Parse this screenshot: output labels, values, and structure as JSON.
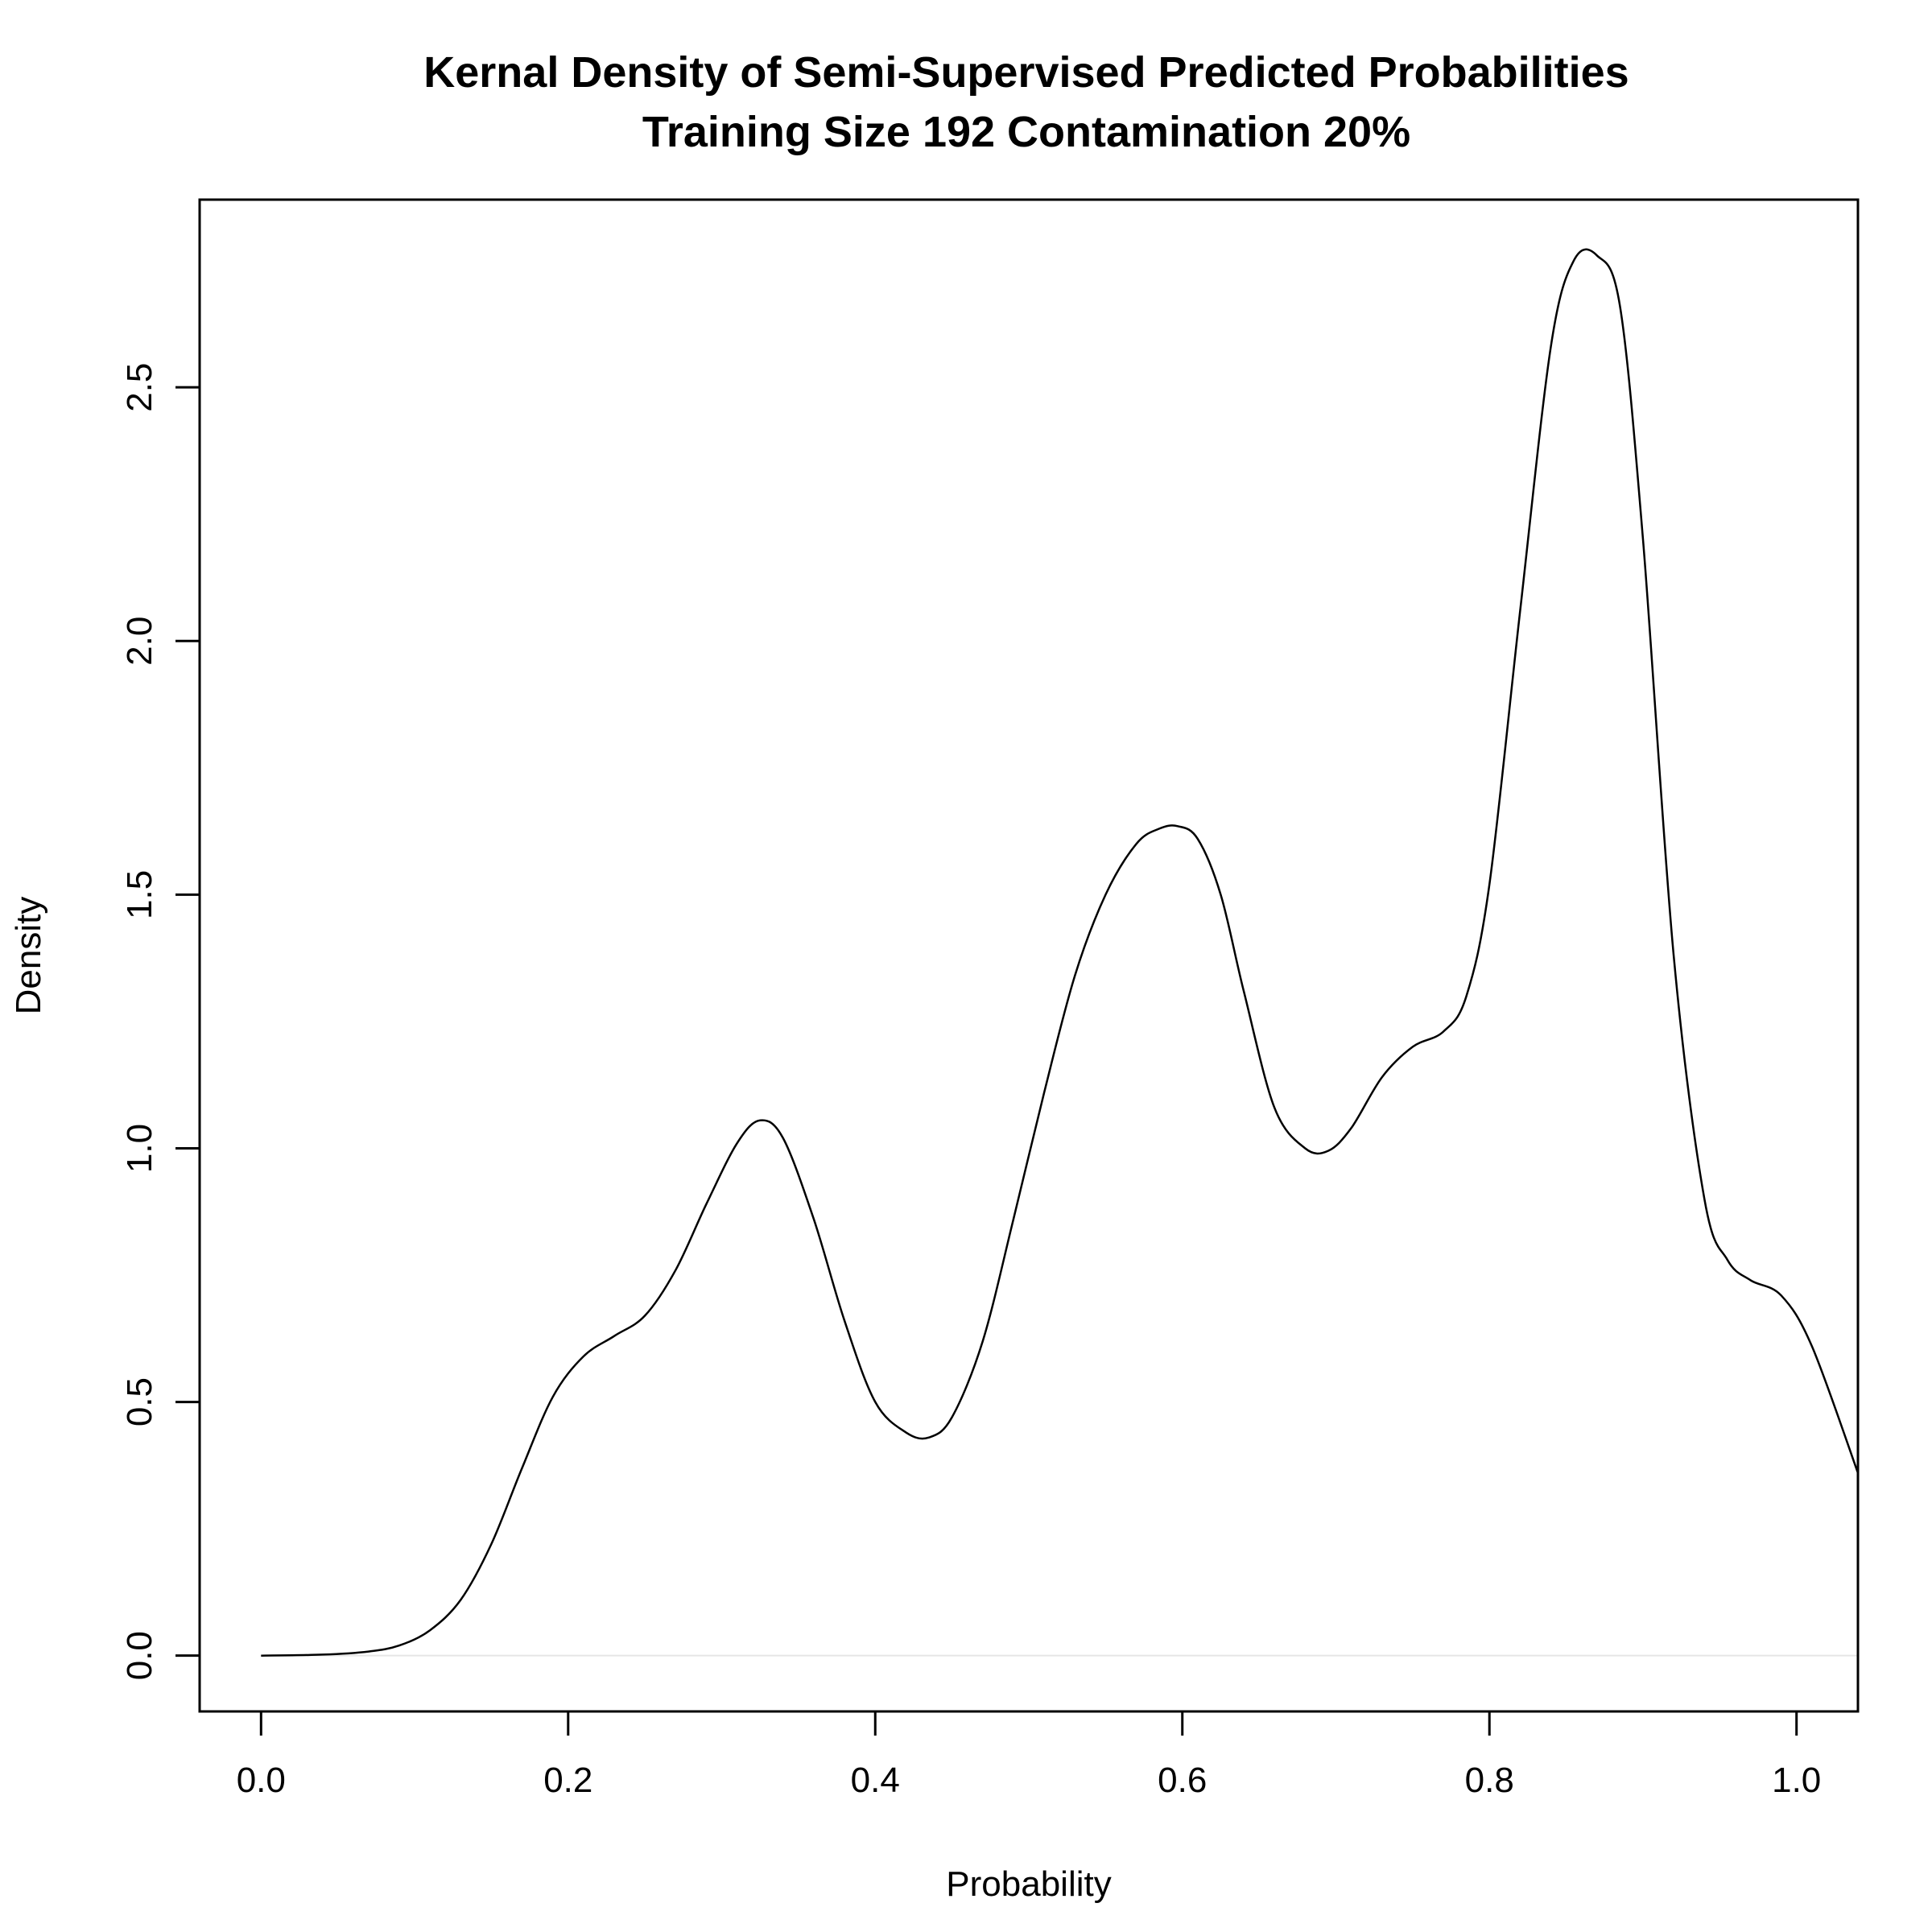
{
  "chart_data": {
    "type": "line",
    "title": "Kernal Density of Semi-Supervised Predicted Probabilities",
    "subtitle": "Training Size 192 Contamination 20%",
    "xlabel": "Probability",
    "ylabel": "Density",
    "xlim": [
      -0.04,
      1.04
    ],
    "ylim": [
      -0.11,
      2.87
    ],
    "x_ticks": [
      0.0,
      0.2,
      0.4,
      0.6,
      0.8,
      1.0
    ],
    "x_tick_labels": [
      "0.0",
      "0.2",
      "0.4",
      "0.6",
      "0.8",
      "1.0"
    ],
    "y_ticks": [
      0.0,
      0.5,
      1.0,
      1.5,
      2.0,
      2.5
    ],
    "y_tick_labels": [
      "0.0",
      "0.5",
      "1.0",
      "1.5",
      "2.0",
      "2.5"
    ],
    "grid": false,
    "zero_line": true,
    "colors": {
      "line": "#000000",
      "zero_line": "#e6e6e6"
    },
    "series": [
      {
        "x": [
          0.0,
          0.04,
          0.07,
          0.09,
          0.11,
          0.13,
          0.15,
          0.17,
          0.19,
          0.21,
          0.23,
          0.25,
          0.27,
          0.29,
          0.31,
          0.325,
          0.34,
          0.36,
          0.38,
          0.4,
          0.42,
          0.435,
          0.45,
          0.47,
          0.49,
          0.51,
          0.53,
          0.55,
          0.57,
          0.585,
          0.597,
          0.61,
          0.625,
          0.64,
          0.66,
          0.68,
          0.695,
          0.71,
          0.73,
          0.75,
          0.77,
          0.785,
          0.8,
          0.82,
          0.84,
          0.855,
          0.87,
          0.885,
          0.9,
          0.92,
          0.94,
          0.955,
          0.97,
          0.99,
          1.01,
          1.04
        ],
        "y": [
          0.0,
          0.002,
          0.008,
          0.02,
          0.05,
          0.11,
          0.22,
          0.37,
          0.51,
          0.59,
          0.63,
          0.67,
          0.76,
          0.89,
          1.01,
          1.055,
          1.02,
          0.86,
          0.66,
          0.5,
          0.44,
          0.43,
          0.47,
          0.62,
          0.86,
          1.11,
          1.34,
          1.5,
          1.6,
          1.63,
          1.635,
          1.61,
          1.5,
          1.31,
          1.08,
          1.0,
          0.995,
          1.04,
          1.14,
          1.2,
          1.23,
          1.3,
          1.52,
          2.06,
          2.58,
          2.75,
          2.76,
          2.66,
          2.2,
          1.38,
          0.9,
          0.78,
          0.74,
          0.71,
          0.61,
          0.36
        ]
      }
    ]
  }
}
